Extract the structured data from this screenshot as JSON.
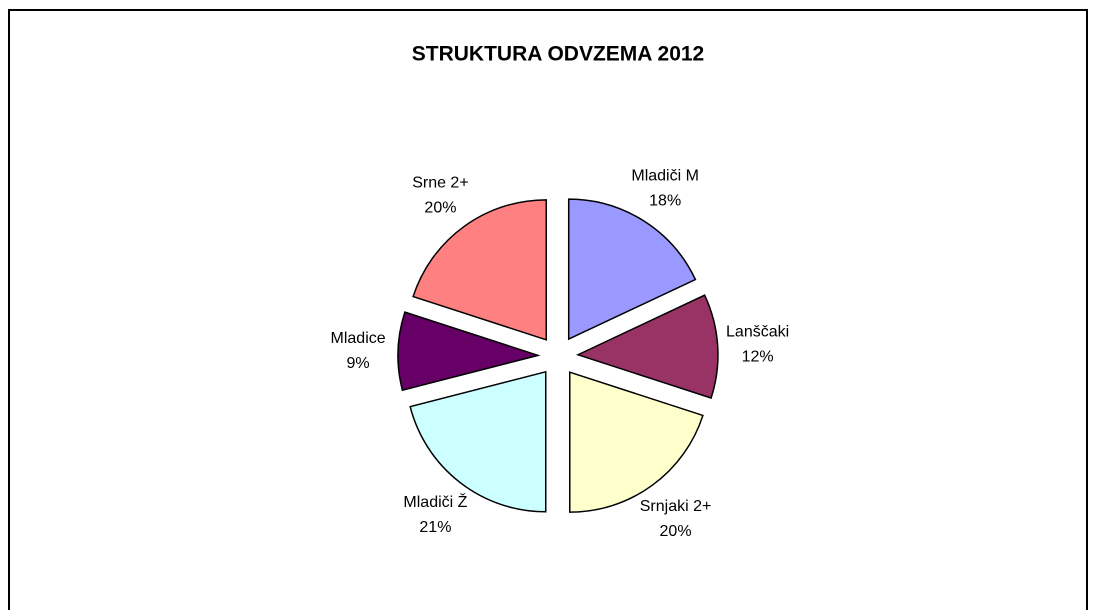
{
  "chart_data": {
    "type": "pie",
    "title": "STRUKTURA ODVZEMA 2012",
    "categories": [
      "Mladiči M",
      "Lanščaki",
      "Srnjaki 2+",
      "Mladiči Ž",
      "Mladice",
      "Srne 2+"
    ],
    "values": [
      18,
      12,
      20,
      21,
      9,
      20
    ],
    "value_labels": [
      "18%",
      "12%",
      "20%",
      "21%",
      "9%",
      "20%"
    ],
    "colors": [
      "#9999ff",
      "#993366",
      "#ffffcc",
      "#ccffff",
      "#660066",
      "#ff8080"
    ]
  }
}
